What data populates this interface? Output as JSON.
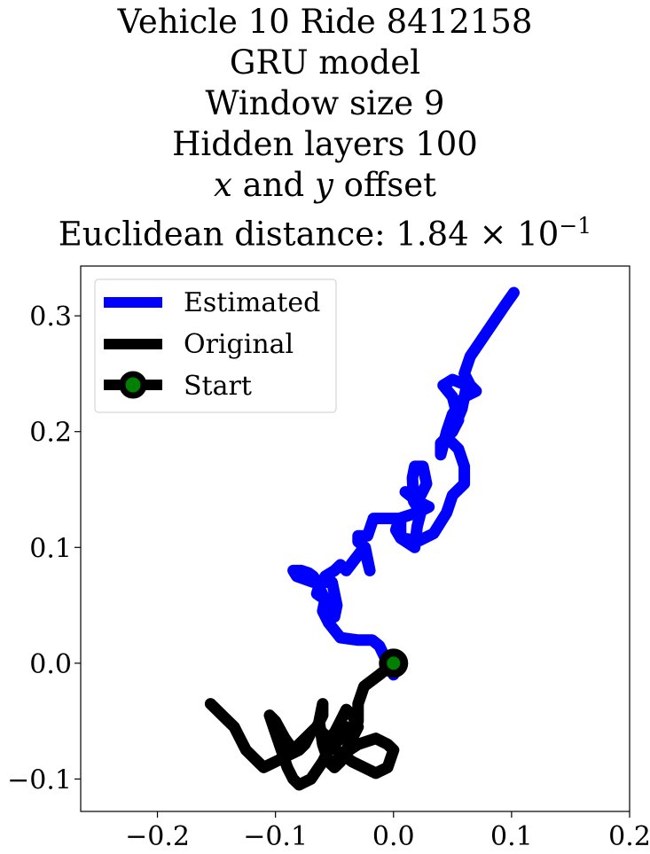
{
  "title": {
    "line1": "Vehicle 10 Ride 8412158",
    "line2": "GRU model",
    "line3": "Window size 9",
    "line4": "Hidden layers 100",
    "line5_var_x": "x",
    "line5_and": " and ",
    "line5_var_y": "y",
    "line5_rest": " offset",
    "line6_prefix": "Euclidean distance: ",
    "line6_value": "1.84 × 10",
    "line6_exp": "−1"
  },
  "chart_data": {
    "type": "line",
    "title": "Vehicle 10 Ride 8412158 GRU model Window size 9 Hidden layers 100 x and y offset Euclidean distance: 1.84×10^-1",
    "xlabel": "",
    "ylabel": "",
    "xlim": [
      -0.265,
      0.2
    ],
    "ylim": [
      -0.128,
      0.343
    ],
    "xticks": [
      -0.2,
      -0.1,
      0.0,
      0.1,
      0.2
    ],
    "xtick_labels": [
      "−0.2",
      "−0.1",
      "0.0",
      "0.1",
      "0.2"
    ],
    "yticks": [
      -0.1,
      0.0,
      0.1,
      0.2,
      0.3
    ],
    "ytick_labels": [
      "−0.1",
      "0.0",
      "0.1",
      "0.2",
      "0.3"
    ],
    "grid": false,
    "legend_position": "top-left",
    "series": [
      {
        "name": "Estimated",
        "color": "#0000ff",
        "x": [
          0.0,
          -0.005,
          -0.012,
          -0.018,
          -0.03,
          -0.045,
          -0.055,
          -0.06,
          -0.058,
          -0.065,
          -0.062,
          -0.052,
          -0.048,
          -0.05,
          -0.058,
          -0.065,
          -0.068,
          -0.072,
          -0.078,
          -0.085,
          -0.082,
          -0.068,
          -0.06,
          -0.058,
          -0.05,
          -0.045,
          -0.04,
          -0.025,
          -0.02,
          -0.024,
          -0.03,
          -0.03,
          -0.022,
          -0.017,
          0.006,
          0.006,
          0.018,
          0.02,
          0.023,
          0.017,
          0.016,
          0.018,
          0.025,
          0.028,
          0.023,
          0.01,
          0.02,
          0.03,
          0.02,
          0.005,
          0.002,
          0.006,
          0.022,
          0.034,
          0.045,
          0.05,
          0.06,
          0.06,
          0.055,
          0.045,
          0.05,
          0.055,
          0.05,
          0.042,
          0.05,
          0.062,
          0.058,
          0.05,
          0.04,
          0.04,
          0.04,
          0.045,
          0.05,
          0.06,
          0.07,
          0.065,
          0.06,
          0.065,
          0.075,
          0.085,
          0.095,
          0.102
        ],
        "y": [
          -0.01,
          0.0,
          0.015,
          0.02,
          0.02,
          0.022,
          0.035,
          0.045,
          0.055,
          0.06,
          0.07,
          0.07,
          0.05,
          0.04,
          0.055,
          0.07,
          0.075,
          0.078,
          0.08,
          0.08,
          0.075,
          0.07,
          0.07,
          0.075,
          0.08,
          0.085,
          0.08,
          0.1,
          0.08,
          0.1,
          0.105,
          0.11,
          0.11,
          0.125,
          0.125,
          0.108,
          0.1,
          0.118,
          0.13,
          0.14,
          0.16,
          0.17,
          0.17,
          0.155,
          0.145,
          0.148,
          0.14,
          0.135,
          0.13,
          0.125,
          0.115,
          0.108,
          0.106,
          0.112,
          0.13,
          0.145,
          0.155,
          0.17,
          0.185,
          0.195,
          0.2,
          0.21,
          0.23,
          0.24,
          0.245,
          0.24,
          0.22,
          0.2,
          0.19,
          0.185,
          0.18,
          0.2,
          0.215,
          0.23,
          0.235,
          0.24,
          0.25,
          0.265,
          0.28,
          0.295,
          0.31,
          0.32
        ]
      },
      {
        "name": "Original",
        "color": "#000000",
        "x": [
          0.0,
          -0.012,
          -0.025,
          -0.03,
          -0.03,
          -0.035,
          -0.035,
          -0.04,
          -0.045,
          -0.05,
          -0.045,
          -0.03,
          -0.015,
          -0.005,
          0.0,
          -0.005,
          -0.015,
          -0.035,
          -0.055,
          -0.05,
          -0.04,
          -0.045,
          -0.055,
          -0.06,
          -0.07,
          -0.08,
          -0.085,
          -0.09,
          -0.095,
          -0.1,
          -0.105,
          -0.1,
          -0.092,
          -0.085,
          -0.075,
          -0.065,
          -0.06,
          -0.06,
          -0.063,
          -0.06,
          -0.055,
          -0.05,
          -0.045,
          -0.04,
          -0.035,
          -0.03,
          -0.035,
          -0.04,
          -0.045,
          -0.05,
          -0.055,
          -0.06,
          -0.065,
          -0.07,
          -0.075,
          -0.08,
          -0.09,
          -0.1,
          -0.11,
          -0.115,
          -0.12,
          -0.125,
          -0.13,
          -0.135,
          -0.14,
          -0.145,
          -0.15,
          -0.155
        ],
        "y": [
          0.0,
          -0.01,
          -0.02,
          -0.035,
          -0.05,
          -0.06,
          -0.07,
          -0.075,
          -0.08,
          -0.085,
          -0.08,
          -0.07,
          -0.065,
          -0.07,
          -0.075,
          -0.09,
          -0.095,
          -0.085,
          -0.07,
          -0.06,
          -0.055,
          -0.065,
          -0.075,
          -0.085,
          -0.1,
          -0.105,
          -0.1,
          -0.09,
          -0.075,
          -0.06,
          -0.045,
          -0.05,
          -0.065,
          -0.075,
          -0.065,
          -0.055,
          -0.045,
          -0.035,
          -0.05,
          -0.07,
          -0.085,
          -0.09,
          -0.085,
          -0.075,
          -0.065,
          -0.055,
          -0.045,
          -0.04,
          -0.05,
          -0.06,
          -0.065,
          -0.06,
          -0.055,
          -0.06,
          -0.07,
          -0.075,
          -0.08,
          -0.085,
          -0.09,
          -0.085,
          -0.08,
          -0.075,
          -0.065,
          -0.055,
          -0.05,
          -0.045,
          -0.04,
          -0.035
        ]
      }
    ],
    "start_point": {
      "name": "Start",
      "x": 0.0,
      "y": 0.0,
      "edge_color": "#000000",
      "face_color": "#008000"
    }
  },
  "legend": {
    "estimated_label": "Estimated",
    "original_label": "Original",
    "start_label": "Start"
  }
}
